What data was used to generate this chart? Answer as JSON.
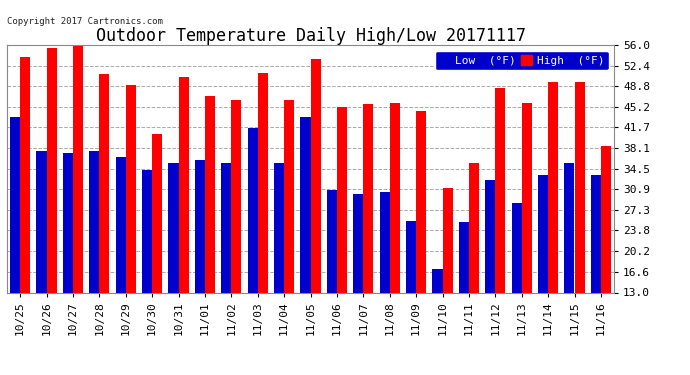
{
  "title": "Outdoor Temperature Daily High/Low 20171117",
  "copyright": "Copyright 2017 Cartronics.com",
  "background_color": "#ffffff",
  "plot_bg_color": "#ffffff",
  "categories": [
    "10/25",
    "10/26",
    "10/27",
    "10/28",
    "10/29",
    "10/30",
    "10/31",
    "11/01",
    "11/02",
    "11/03",
    "11/04",
    "11/05",
    "11/06",
    "11/07",
    "11/08",
    "11/09",
    "11/10",
    "11/11",
    "11/12",
    "11/13",
    "11/14",
    "11/15",
    "11/16"
  ],
  "high_values": [
    54.0,
    55.5,
    55.8,
    51.0,
    49.0,
    40.5,
    50.5,
    47.2,
    46.5,
    51.2,
    46.5,
    53.5,
    45.3,
    45.7,
    46.0,
    44.5,
    31.2,
    35.5,
    48.5,
    46.0,
    49.5,
    49.5,
    38.5
  ],
  "low_values": [
    43.5,
    37.5,
    37.2,
    37.5,
    36.5,
    34.2,
    35.5,
    36.0,
    35.5,
    41.5,
    35.5,
    43.5,
    30.8,
    30.2,
    30.5,
    25.5,
    17.0,
    25.2,
    32.5,
    28.5,
    33.5,
    35.5,
    33.5
  ],
  "high_color": "#ff0000",
  "low_color": "#0000cc",
  "ylim_min": 13.0,
  "ylim_max": 56.0,
  "yticks": [
    13.0,
    16.6,
    20.2,
    23.8,
    27.3,
    30.9,
    34.5,
    38.1,
    41.7,
    45.2,
    48.8,
    52.4,
    56.0
  ],
  "grid_color": "#aaaaaa",
  "bar_width": 0.38,
  "title_fontsize": 12,
  "tick_fontsize": 8,
  "legend_fontsize": 8,
  "border_color": "#888888"
}
